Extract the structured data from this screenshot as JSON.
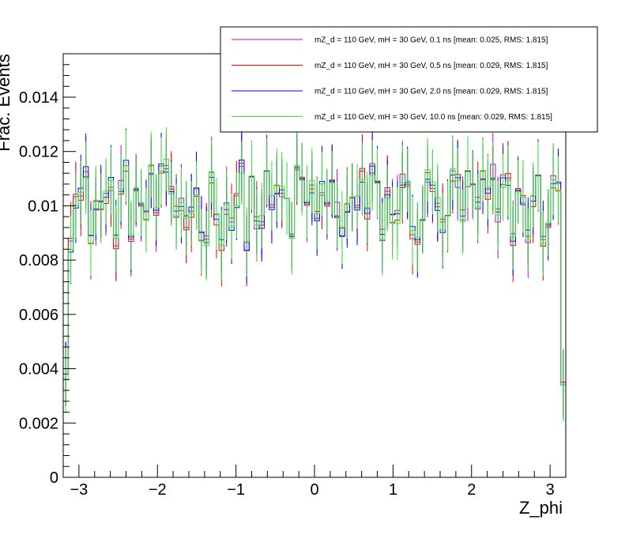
{
  "chart_data": {
    "type": "line",
    "style": "step histogram with error bars",
    "xlabel": "Z_phi",
    "ylabel": "Frac. Events",
    "xlim": [
      -3.2,
      3.2
    ],
    "ylim": [
      0,
      0.0156
    ],
    "x_ticks": [
      -3,
      -2,
      -1,
      0,
      1,
      2,
      3
    ],
    "x_tick_labels": [
      "−3",
      "−2",
      "−1",
      "0",
      "1",
      "2",
      "3"
    ],
    "y_ticks": [
      0,
      0.002,
      0.004,
      0.006,
      0.008,
      0.01,
      0.012,
      0.014
    ],
    "y_tick_labels": [
      "0",
      "0.002",
      "0.004",
      "0.006",
      "0.008",
      "0.01",
      "0.012",
      "0.014"
    ],
    "bins": 100,
    "grid": false,
    "legend_position": "top-right",
    "series": [
      {
        "name": "mZ_d = 110 GeV, mH = 30 GeV, 0.1 ns [mean: 0.025, RMS: 1.815]",
        "color": "#cc00cc",
        "base": 0.01,
        "edge_low": 0.0038,
        "edge_high": 0.0035
      },
      {
        "name": "mZ_d = 110 GeV, mH = 30 GeV, 0.5 ns [mean: 0.029, RMS: 1.815]",
        "color": "#ff0000",
        "base": 0.01,
        "edge_low": 0.0038,
        "edge_high": 0.0035
      },
      {
        "name": "mZ_d = 110 GeV, mH = 30 GeV, 2.0 ns [mean: 0.029, RMS: 1.815]",
        "color": "#0000ff",
        "base": 0.01,
        "edge_low": 0.0038,
        "edge_high": 0.0034
      },
      {
        "name": "mZ_d = 110 GeV, mH = 30 GeV, 10.0 ns [mean: 0.029, RMS: 1.815]",
        "color": "#33ee33",
        "base": 0.01,
        "edge_low": 0.0036,
        "edge_high": 0.0034
      }
    ]
  }
}
